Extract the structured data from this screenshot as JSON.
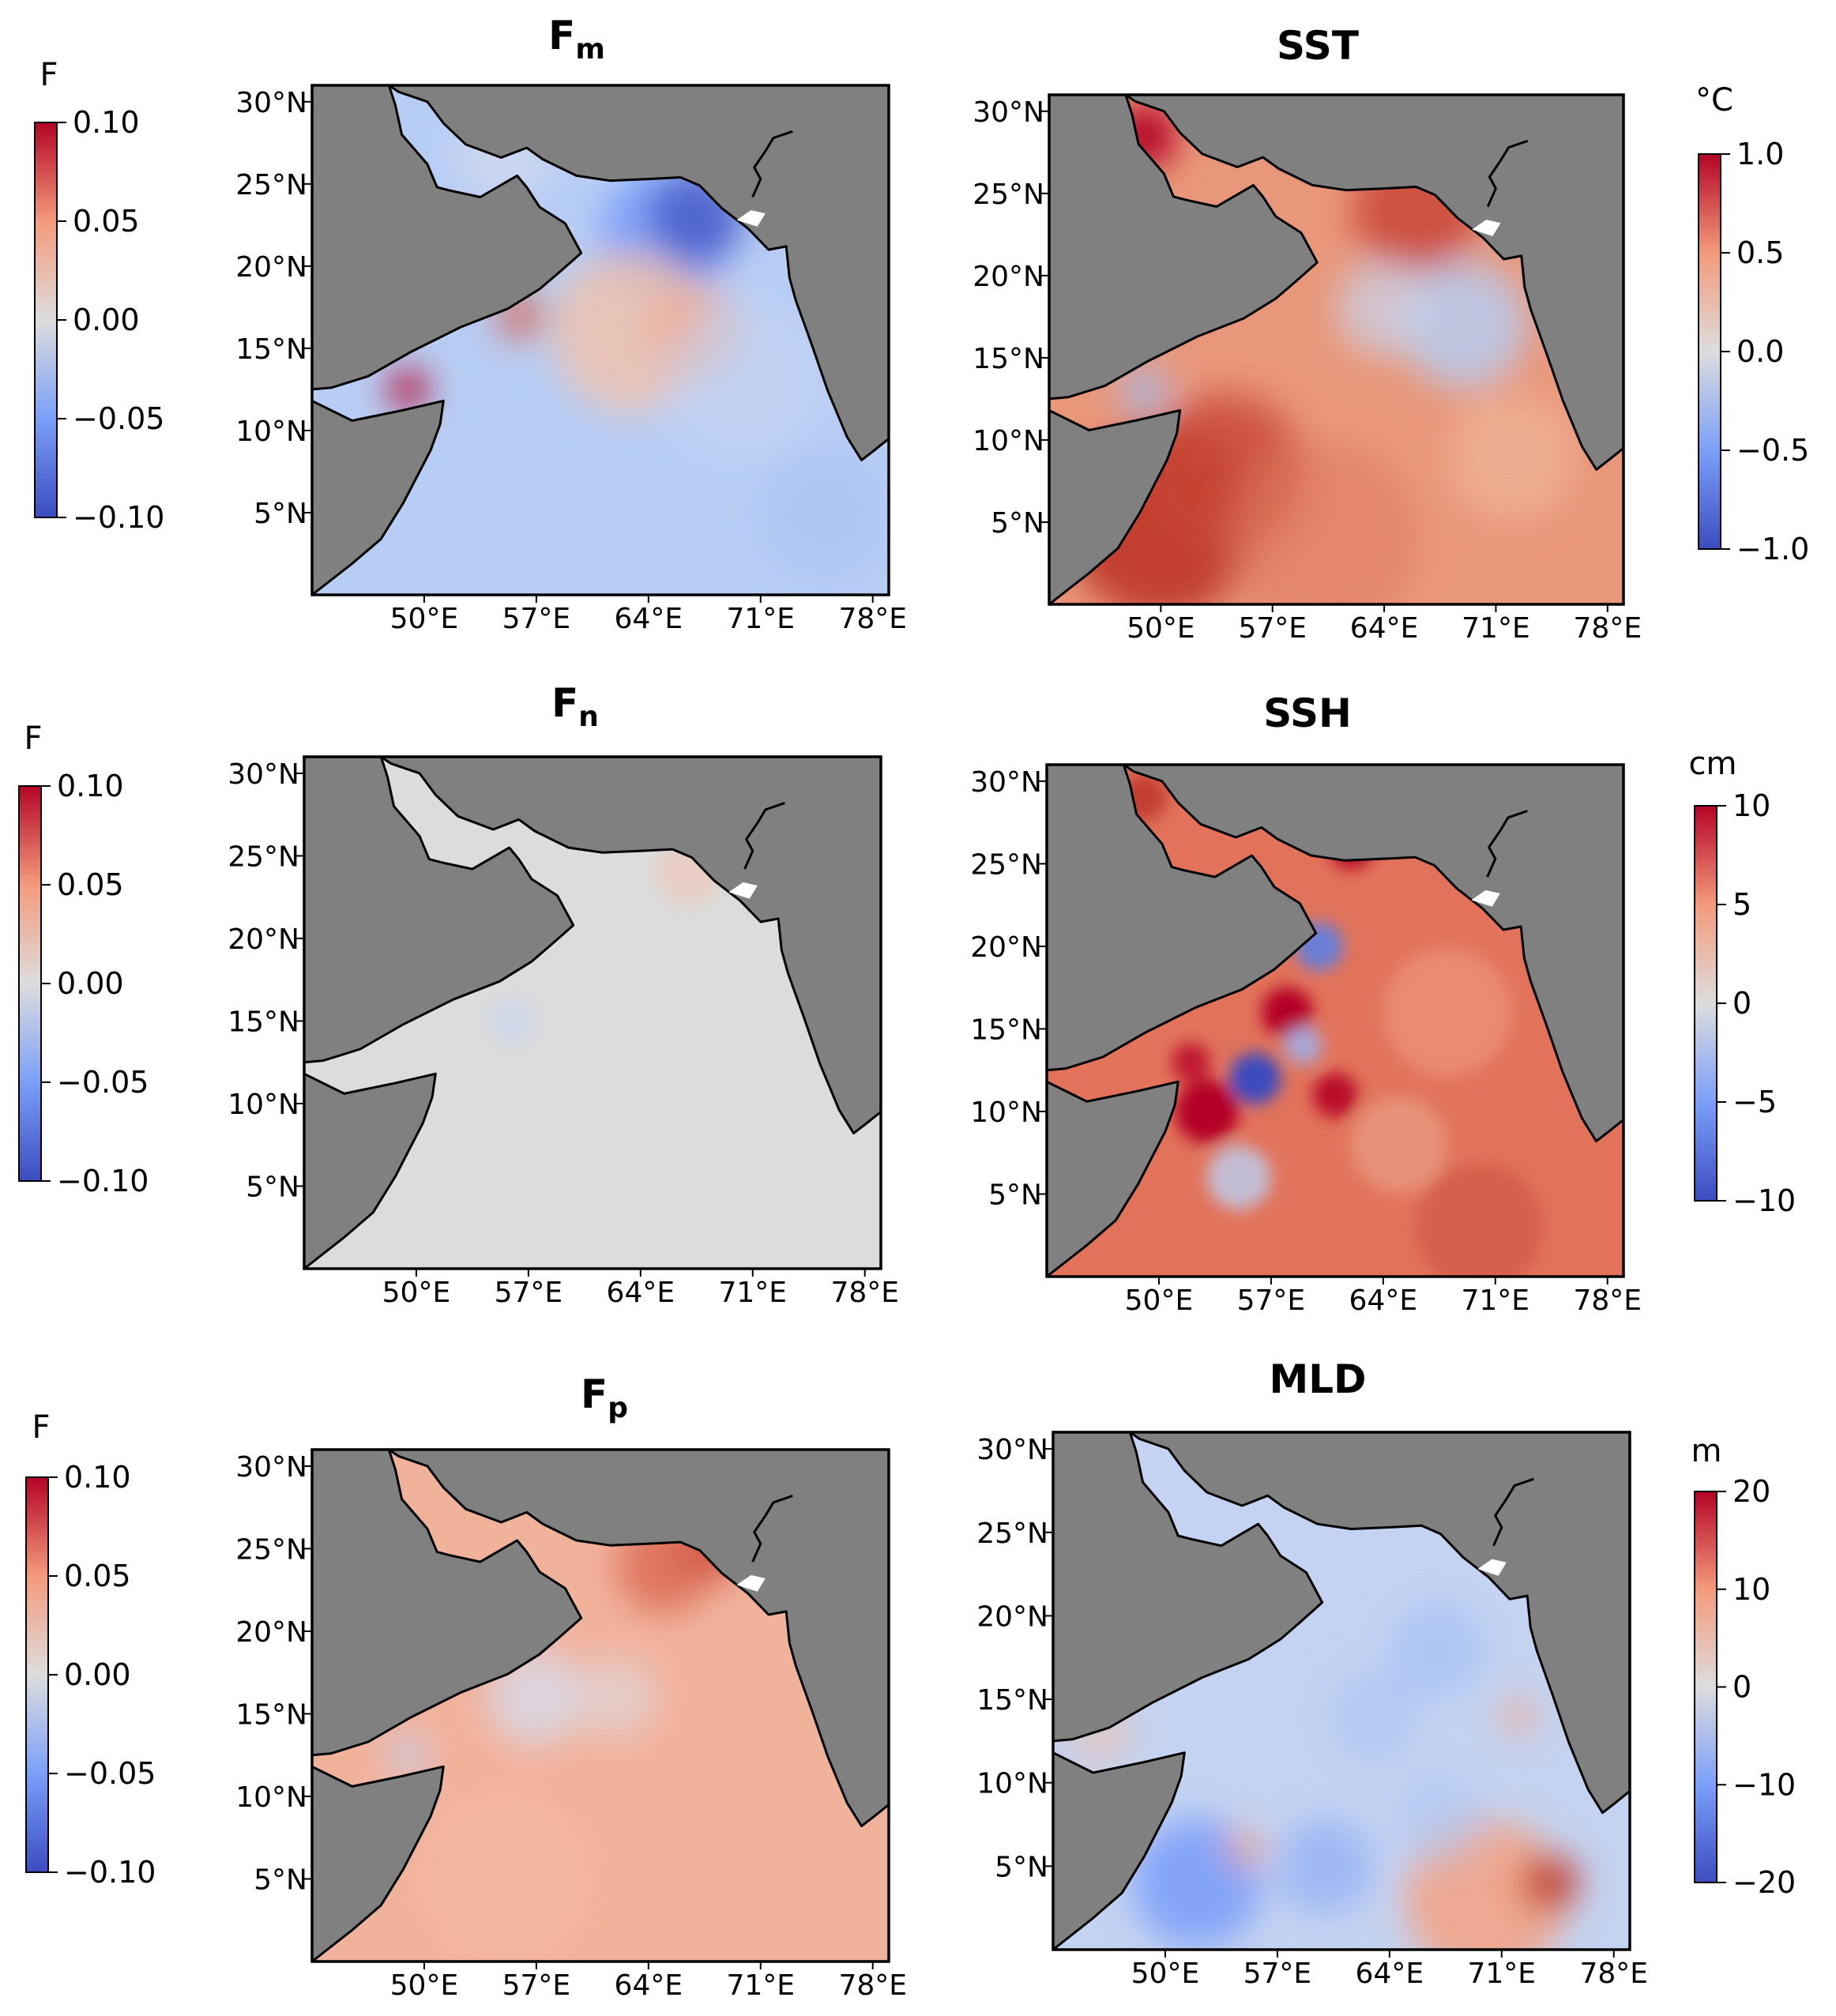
{
  "colors": {
    "land": "#808080",
    "coast": "#000000",
    "cmap_low": "#3b4cc0",
    "cmap_mid": "#dddddd",
    "cmap_high": "#b40426"
  },
  "map_extent": {
    "lon_min": 43,
    "lon_max": 79,
    "lat_min": 0,
    "lat_max": 31
  },
  "lon_ticks": [
    "50°E",
    "57°E",
    "64°E",
    "71°E",
    "78°E"
  ],
  "lat_ticks": [
    "30°N",
    "25°N",
    "20°N",
    "15°N",
    "10°N",
    "5°N"
  ],
  "panels": [
    {
      "id": "fm",
      "title_main": "F",
      "title_sub": "m",
      "cbar_unit": "F",
      "cbar_ticks": [
        "0.10",
        "0.05",
        "0.00",
        "−0.05",
        "−0.10"
      ],
      "field_mode": "fm"
    },
    {
      "id": "sst",
      "title_main": "SST",
      "title_sub": "",
      "cbar_unit": "°C",
      "cbar_ticks": [
        "1.0",
        "0.5",
        "0.0",
        "−0.5",
        "−1.0"
      ],
      "field_mode": "sst"
    },
    {
      "id": "fn",
      "title_main": "F",
      "title_sub": "n",
      "cbar_unit": "F",
      "cbar_ticks": [
        "0.10",
        "0.05",
        "0.00",
        "−0.05",
        "−0.10"
      ],
      "field_mode": "fn"
    },
    {
      "id": "ssh",
      "title_main": "SSH",
      "title_sub": "",
      "cbar_unit": "cm",
      "cbar_ticks": [
        "10",
        "5",
        "0",
        "−5",
        "−10"
      ],
      "field_mode": "ssh"
    },
    {
      "id": "fp",
      "title_main": "F",
      "title_sub": "p",
      "cbar_unit": "F",
      "cbar_ticks": [
        "0.10",
        "0.05",
        "0.00",
        "−0.05",
        "−0.10"
      ],
      "field_mode": "fp"
    },
    {
      "id": "mld",
      "title_main": "MLD",
      "title_sub": "",
      "cbar_unit": "m",
      "cbar_ticks": [
        "20",
        "10",
        "0",
        "−10",
        "−20"
      ],
      "field_mode": "mld"
    }
  ]
}
